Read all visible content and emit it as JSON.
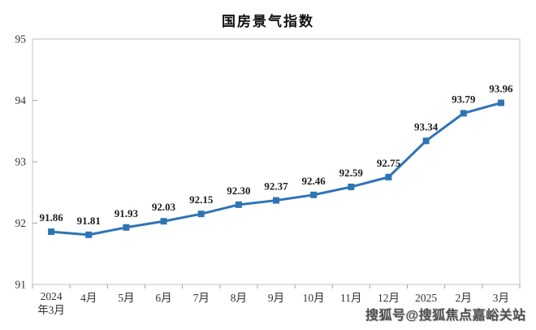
{
  "title": "国房景气指数",
  "watermark": "搜狐号@搜狐焦点嘉峪关站",
  "chart_data": {
    "type": "line",
    "title": "国房景气指数",
    "categories": [
      "2024年3月",
      "4月",
      "5月",
      "6月",
      "7月",
      "8月",
      "9月",
      "10月",
      "11月",
      "12月",
      "2025",
      "2月",
      "3月"
    ],
    "values": [
      91.86,
      91.81,
      91.93,
      92.03,
      92.15,
      92.3,
      92.37,
      92.46,
      92.59,
      92.75,
      93.34,
      93.79,
      93.96
    ],
    "xlabel": "",
    "ylabel": "",
    "ylim": [
      91,
      95
    ],
    "yticks": [
      91,
      92,
      93,
      94,
      95
    ],
    "grid": false,
    "legend": "none",
    "line_color": "#2E74B5",
    "marker": "square",
    "marker_size": 8,
    "line_width": 3,
    "axis_color": "#c3c3c3",
    "tick_color": "#a6a6a6",
    "label_decimals": 2
  }
}
